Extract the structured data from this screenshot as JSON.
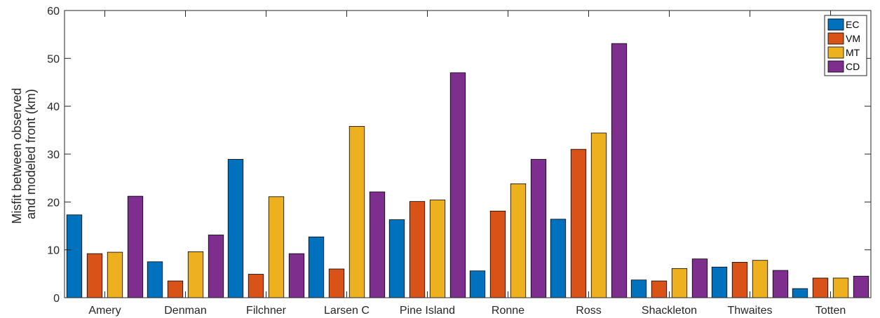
{
  "chart_data": {
    "type": "bar",
    "title": "",
    "xlabel": "",
    "ylabel": [
      "Misfit between observed",
      "and modeled front (km)"
    ],
    "ylim": [
      0,
      60
    ],
    "yticks": [
      0,
      10,
      20,
      30,
      40,
      50,
      60
    ],
    "grid": false,
    "legend_position": "top-right",
    "categories": [
      "Amery",
      "Denman",
      "Filchner",
      "Larsen C",
      "Pine Island",
      "Ronne",
      "Ross",
      "Shackleton",
      "Thwaites",
      "Totten"
    ],
    "series": [
      {
        "name": "EC",
        "color": "#0072BD",
        "values": [
          17.3,
          7.5,
          28.9,
          12.7,
          16.3,
          5.6,
          16.4,
          3.7,
          6.4,
          1.9
        ]
      },
      {
        "name": "VM",
        "color": "#D95319",
        "values": [
          9.2,
          3.5,
          4.9,
          6.0,
          20.1,
          18.1,
          31.0,
          3.5,
          7.4,
          4.1
        ]
      },
      {
        "name": "MT",
        "color": "#EDB120",
        "values": [
          9.5,
          9.6,
          21.1,
          35.8,
          20.4,
          23.8,
          34.4,
          6.1,
          7.8,
          4.1
        ]
      },
      {
        "name": "CD",
        "color": "#7E2F8E",
        "values": [
          21.2,
          13.1,
          9.2,
          22.1,
          47.0,
          28.9,
          53.1,
          8.1,
          5.7,
          4.5
        ]
      }
    ]
  }
}
